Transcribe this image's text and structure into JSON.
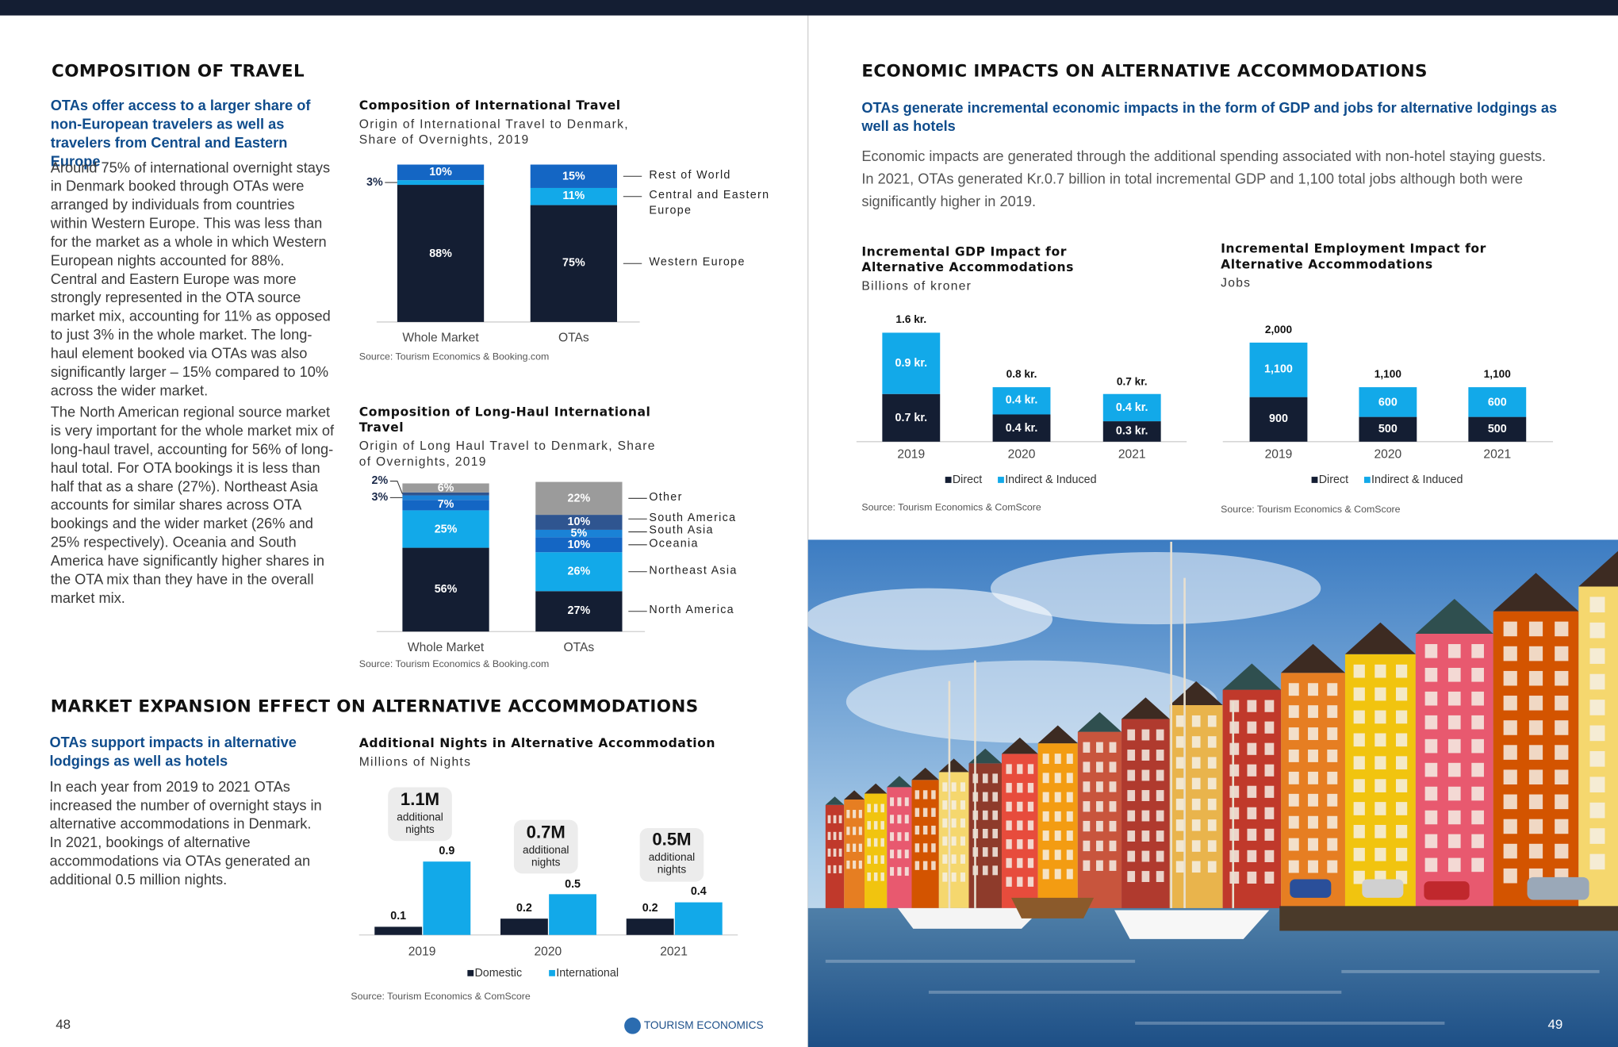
{
  "sections": [
    {
      "heading": "COMPOSITION OF TRAVEL",
      "lead": "OTAs offer access to a larger share of non-European travelers as well as travelers from Central and Eastern Europe",
      "paragraphs": [
        "Around 75% of international overnight stays in Denmark booked through OTAs were arranged by individuals from countries within Western Europe. This was less than for the market as a whole in which Western European nights accounted for 88%. Central and Eastern Europe was more strongly represented in the OTA source market mix, accounting for 11% as opposed to just 3% in the whole market. The long-haul element booked via OTAs was also significantly larger – 15% compared to 10% across the wider market.",
        "The North American regional source market is very important for the whole market mix of long-haul travel, accounting for 56% of long-haul total. For OTA bookings it is less than half that as a share (27%). Northeast Asia accounts for similar shares across OTA bookings and the wider market (26% and 25% respectively). Oceania and South America have significantly higher shares in the OTA mix than they have in the overall market mix."
      ]
    },
    {
      "heading": "MARKET EXPANSION EFFECT ON ALTERNATIVE ACCOMMODATIONS",
      "lead": "OTAs support impacts in alternative lodgings as well as hotels",
      "paragraphs": [
        "In each year from 2019 to 2021 OTAs increased the number of overnight stays in alternative accommodations in Denmark. In 2021, bookings of alternative accommodations via OTAs generated an additional 0.5 million nights."
      ]
    },
    {
      "heading": "ECONOMIC IMPACTS ON ALTERNATIVE ACCOMMODATIONS",
      "lead": "OTAs generate incremental economic impacts in the form of GDP and jobs for alternative lodgings as well as hotels",
      "paragraphs": [
        "Economic impacts are generated through the additional spending associated with non-hotel staying guests. In 2021, OTAs generated Kr.0.7 billion in total incremental GDP and 1,100 total jobs although both were significantly higher in 2019."
      ]
    }
  ],
  "charts": [
    {
      "type": "stacked_bar",
      "title": "Composition of International Travel",
      "subtitle": "Origin of International Travel to Denmark, Share of Overnights, 2019",
      "categories": [
        "Whole Market",
        "OTAs"
      ],
      "ylim": [
        0,
        100
      ],
      "series": [
        {
          "name": "Western Europe",
          "color": "#141e33",
          "values": [
            88,
            75
          ],
          "value_labels": [
            "88%",
            "75%"
          ]
        },
        {
          "name": "Central and Eastern Europe",
          "color": "#12a9e9",
          "values": [
            3,
            11
          ],
          "value_labels": [
            "3%",
            "11%"
          ]
        },
        {
          "name": "Rest of World",
          "color": "#1466c4",
          "values": [
            10,
            15
          ],
          "value_labels": [
            "10%",
            "15%"
          ]
        }
      ],
      "source": "Source: Tourism Economics & Booking.com"
    },
    {
      "type": "stacked_bar",
      "title": "Composition of Long-Haul International Travel",
      "subtitle": "Origin of Long Haul Travel to Denmark, Share of Overnights, 2019",
      "categories": [
        "Whole Market",
        "OTAs"
      ],
      "ylim": [
        0,
        100
      ],
      "series": [
        {
          "name": "North America",
          "color": "#141e33",
          "values": [
            56,
            27
          ],
          "value_labels": [
            "56%",
            "27%"
          ]
        },
        {
          "name": "Northeast Asia",
          "color": "#12a9e9",
          "values": [
            25,
            26
          ],
          "value_labels": [
            "25%",
            "26%"
          ]
        },
        {
          "name": "Oceania",
          "color": "#1466c4",
          "values": [
            7,
            10
          ],
          "value_labels": [
            "7%",
            "10%"
          ]
        },
        {
          "name": "South Asia",
          "color": "#1a82d6",
          "values": [
            3,
            5
          ],
          "value_labels": [
            "3%",
            "5%"
          ]
        },
        {
          "name": "South America",
          "color": "#2f5590",
          "values": [
            2,
            10
          ],
          "value_labels": [
            "2%",
            "10%"
          ]
        },
        {
          "name": "Other",
          "color": "#9b9b9b",
          "values": [
            6,
            22
          ],
          "value_labels": [
            "6%",
            "22%"
          ]
        }
      ],
      "source": "Source: Tourism Economics & Booking.com"
    },
    {
      "type": "grouped_bar",
      "title": "Additional Nights in Alternative Accommodation",
      "subtitle": "Millions of Nights",
      "categories": [
        "2019",
        "2020",
        "2021"
      ],
      "ylim": [
        0,
        1
      ],
      "series": [
        {
          "name": "Domestic",
          "color": "#141e33",
          "values": [
            0.1,
            0.2,
            0.2
          ]
        },
        {
          "name": "International",
          "color": "#12a9e9",
          "values": [
            0.9,
            0.5,
            0.4
          ]
        }
      ],
      "totals": [
        1.1,
        0.7,
        0.5
      ],
      "total_labels": [
        "1.1M",
        "0.7M",
        "0.5M"
      ],
      "total_note": "additional nights",
      "source": "Source: Tourism Economics & ComScore"
    },
    {
      "type": "stacked_bar",
      "title": "Incremental GDP Impact for Alternative Accommodations",
      "subtitle": "Billions of kroner",
      "categories": [
        "2019",
        "2020",
        "2021"
      ],
      "ylim": [
        0,
        2
      ],
      "series": [
        {
          "name": "Direct",
          "color": "#141e33",
          "values": [
            0.7,
            0.4,
            0.3
          ],
          "value_labels": [
            "0.7 kr.",
            "0.4 kr.",
            "0.3 kr."
          ]
        },
        {
          "name": "Indirect & Induced",
          "color": "#12a9e9",
          "values": [
            0.9,
            0.4,
            0.4
          ],
          "value_labels": [
            "0.9 kr.",
            "0.4 kr.",
            "0.4 kr."
          ]
        }
      ],
      "totals": [
        1.6,
        0.8,
        0.7
      ],
      "total_labels": [
        "1.6 kr.",
        "0.8 kr.",
        "0.7 kr."
      ],
      "source": "Source: Tourism Economics & ComScore"
    },
    {
      "type": "stacked_bar",
      "title": "Incremental Employment Impact for Alternative Accommodations",
      "subtitle": "Jobs",
      "categories": [
        "2019",
        "2020",
        "2021"
      ],
      "ylim": [
        0,
        2500
      ],
      "series": [
        {
          "name": "Direct",
          "color": "#141e33",
          "values": [
            900,
            500,
            500
          ]
        },
        {
          "name": "Indirect & Induced",
          "color": "#12a9e9",
          "values": [
            1100,
            600,
            600
          ],
          "value_labels": [
            "1,100",
            "600",
            "600"
          ]
        }
      ],
      "totals": [
        2000,
        1100,
        1100
      ],
      "total_labels": [
        "2,000",
        "1,100",
        "1,100"
      ],
      "source": "Source: Tourism Economics & ComScore"
    }
  ],
  "footer": {
    "left_page_number": "48",
    "logo": "TOURISM ECONOMICS",
    "right_page_number": "49"
  }
}
